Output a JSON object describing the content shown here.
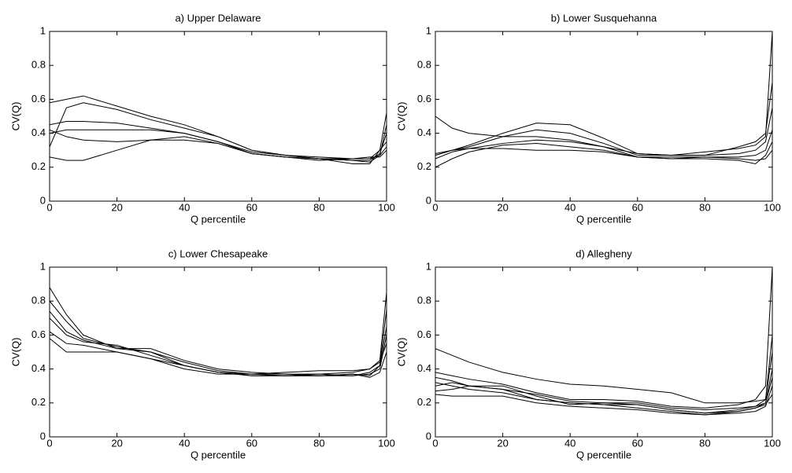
{
  "chart_data": [
    {
      "type": "line",
      "title": "a) Upper Delaware",
      "xlabel": "Q percentile",
      "ylabel": "CV(Q)",
      "x": [
        0,
        5,
        10,
        20,
        30,
        40,
        50,
        60,
        70,
        80,
        90,
        95,
        98,
        100
      ],
      "xlim": [
        0,
        100
      ],
      "ylim": [
        0,
        1
      ],
      "xticks": [
        0,
        20,
        40,
        60,
        80,
        100
      ],
      "yticks": [
        0,
        0.2,
        0.4,
        0.6,
        0.8,
        1
      ],
      "series": [
        {
          "color": "#000000",
          "values": [
            0.58,
            0.6,
            0.62,
            0.56,
            0.5,
            0.45,
            0.38,
            0.3,
            0.27,
            0.26,
            0.25,
            0.25,
            0.27,
            0.45
          ]
        },
        {
          "color": "#000000",
          "values": [
            0.32,
            0.55,
            0.58,
            0.54,
            0.48,
            0.43,
            0.38,
            0.3,
            0.27,
            0.25,
            0.22,
            0.22,
            0.3,
            0.52
          ]
        },
        {
          "color": "#000000",
          "values": [
            0.45,
            0.47,
            0.47,
            0.46,
            0.43,
            0.4,
            0.35,
            0.29,
            0.27,
            0.25,
            0.24,
            0.24,
            0.28,
            0.4
          ]
        },
        {
          "color": "#000000",
          "values": [
            0.4,
            0.42,
            0.42,
            0.42,
            0.42,
            0.4,
            0.35,
            0.28,
            0.26,
            0.24,
            0.25,
            0.25,
            0.3,
            0.35
          ]
        },
        {
          "color": "#000000",
          "values": [
            0.26,
            0.24,
            0.24,
            0.3,
            0.36,
            0.38,
            0.34,
            0.28,
            0.26,
            0.25,
            0.24,
            0.23,
            0.27,
            0.32
          ]
        },
        {
          "color": "#000000",
          "values": [
            0.42,
            0.38,
            0.36,
            0.35,
            0.36,
            0.36,
            0.34,
            0.28,
            0.26,
            0.25,
            0.25,
            0.26,
            0.26,
            0.3
          ]
        }
      ]
    },
    {
      "type": "line",
      "title": "b) Lower Susquehanna",
      "xlabel": "Q percentile",
      "ylabel": "CV(Q)",
      "x": [
        0,
        5,
        10,
        20,
        30,
        40,
        50,
        60,
        70,
        80,
        90,
        95,
        98,
        100
      ],
      "xlim": [
        0,
        100
      ],
      "ylim": [
        0,
        1
      ],
      "xticks": [
        0,
        20,
        40,
        60,
        80,
        100
      ],
      "yticks": [
        0,
        0.2,
        0.4,
        0.6,
        0.8,
        1
      ],
      "series": [
        {
          "color": "#000000",
          "values": [
            0.5,
            0.43,
            0.4,
            0.38,
            0.38,
            0.36,
            0.32,
            0.28,
            0.27,
            0.27,
            0.28,
            0.3,
            0.35,
            0.55
          ]
        },
        {
          "color": "#000000",
          "values": [
            0.28,
            0.3,
            0.33,
            0.4,
            0.46,
            0.45,
            0.37,
            0.28,
            0.27,
            0.27,
            0.32,
            0.35,
            0.4,
            0.7
          ]
        },
        {
          "color": "#000000",
          "values": [
            0.27,
            0.3,
            0.32,
            0.38,
            0.42,
            0.4,
            0.34,
            0.27,
            0.27,
            0.29,
            0.31,
            0.33,
            0.38,
            1.0
          ]
        },
        {
          "color": "#000000",
          "values": [
            0.25,
            0.29,
            0.31,
            0.34,
            0.36,
            0.35,
            0.32,
            0.26,
            0.26,
            0.26,
            0.26,
            0.27,
            0.3,
            0.42
          ]
        },
        {
          "color": "#000000",
          "values": [
            0.2,
            0.25,
            0.29,
            0.33,
            0.34,
            0.32,
            0.3,
            0.26,
            0.25,
            0.25,
            0.24,
            0.22,
            0.27,
            0.35
          ]
        },
        {
          "color": "#000000",
          "values": [
            0.27,
            0.3,
            0.31,
            0.31,
            0.3,
            0.3,
            0.29,
            0.26,
            0.25,
            0.26,
            0.25,
            0.24,
            0.25,
            0.3
          ]
        }
      ]
    },
    {
      "type": "line",
      "title": "c) Lower Chesapeake",
      "xlabel": "Q percentile",
      "ylabel": "CV(Q)",
      "x": [
        0,
        5,
        10,
        20,
        30,
        40,
        50,
        60,
        70,
        80,
        90,
        95,
        98,
        100
      ],
      "xlim": [
        0,
        100
      ],
      "ylim": [
        0,
        1
      ],
      "xticks": [
        0,
        20,
        40,
        60,
        80,
        100
      ],
      "yticks": [
        0,
        0.2,
        0.4,
        0.6,
        0.8,
        1
      ],
      "series": [
        {
          "color": "#000000",
          "values": [
            0.88,
            0.72,
            0.6,
            0.52,
            0.5,
            0.42,
            0.38,
            0.36,
            0.36,
            0.37,
            0.38,
            0.4,
            0.45,
            0.85
          ]
        },
        {
          "color": "#000000",
          "values": [
            0.8,
            0.68,
            0.58,
            0.53,
            0.5,
            0.44,
            0.39,
            0.37,
            0.37,
            0.36,
            0.36,
            0.38,
            0.42,
            0.75
          ]
        },
        {
          "color": "#000000",
          "values": [
            0.74,
            0.62,
            0.57,
            0.52,
            0.52,
            0.45,
            0.4,
            0.38,
            0.37,
            0.37,
            0.36,
            0.37,
            0.4,
            0.6
          ]
        },
        {
          "color": "#000000",
          "values": [
            0.7,
            0.6,
            0.56,
            0.54,
            0.48,
            0.42,
            0.38,
            0.36,
            0.36,
            0.36,
            0.37,
            0.35,
            0.38,
            0.5
          ]
        },
        {
          "color": "#000000",
          "values": [
            0.62,
            0.55,
            0.54,
            0.5,
            0.46,
            0.4,
            0.37,
            0.37,
            0.36,
            0.36,
            0.37,
            0.36,
            0.42,
            0.65
          ]
        },
        {
          "color": "#000000",
          "values": [
            0.58,
            0.5,
            0.5,
            0.5,
            0.46,
            0.42,
            0.38,
            0.37,
            0.38,
            0.39,
            0.39,
            0.4,
            0.44,
            0.55
          ]
        }
      ]
    },
    {
      "type": "line",
      "title": "d) Allegheny",
      "xlabel": "Q percentile",
      "ylabel": "CV(Q)",
      "x": [
        0,
        5,
        10,
        20,
        30,
        40,
        50,
        60,
        70,
        80,
        90,
        95,
        98,
        100
      ],
      "xlim": [
        0,
        100
      ],
      "ylim": [
        0,
        1
      ],
      "xticks": [
        0,
        20,
        40,
        60,
        80,
        100
      ],
      "yticks": [
        0,
        0.2,
        0.4,
        0.6,
        0.8,
        1
      ],
      "series": [
        {
          "color": "#000000",
          "values": [
            0.52,
            0.48,
            0.44,
            0.38,
            0.34,
            0.31,
            0.3,
            0.28,
            0.26,
            0.2,
            0.2,
            0.21,
            0.22,
            0.5
          ]
        },
        {
          "color": "#000000",
          "values": [
            0.38,
            0.36,
            0.34,
            0.31,
            0.26,
            0.22,
            0.22,
            0.21,
            0.18,
            0.17,
            0.19,
            0.22,
            0.3,
            1.0
          ]
        },
        {
          "color": "#000000",
          "values": [
            0.35,
            0.33,
            0.3,
            0.28,
            0.25,
            0.21,
            0.2,
            0.2,
            0.17,
            0.16,
            0.17,
            0.18,
            0.22,
            0.6
          ]
        },
        {
          "color": "#000000",
          "values": [
            0.3,
            0.32,
            0.3,
            0.3,
            0.24,
            0.19,
            0.2,
            0.19,
            0.16,
            0.14,
            0.16,
            0.18,
            0.2,
            0.4
          ]
        },
        {
          "color": "#000000",
          "values": [
            0.27,
            0.28,
            0.3,
            0.28,
            0.22,
            0.2,
            0.19,
            0.19,
            0.16,
            0.14,
            0.15,
            0.17,
            0.2,
            0.35
          ]
        },
        {
          "color": "#000000",
          "values": [
            0.25,
            0.24,
            0.24,
            0.24,
            0.2,
            0.18,
            0.17,
            0.16,
            0.14,
            0.13,
            0.14,
            0.15,
            0.18,
            0.3
          ]
        },
        {
          "color": "#000000",
          "values": [
            0.32,
            0.3,
            0.28,
            0.26,
            0.22,
            0.2,
            0.19,
            0.17,
            0.15,
            0.13,
            0.15,
            0.17,
            0.19,
            0.25
          ]
        }
      ]
    }
  ]
}
